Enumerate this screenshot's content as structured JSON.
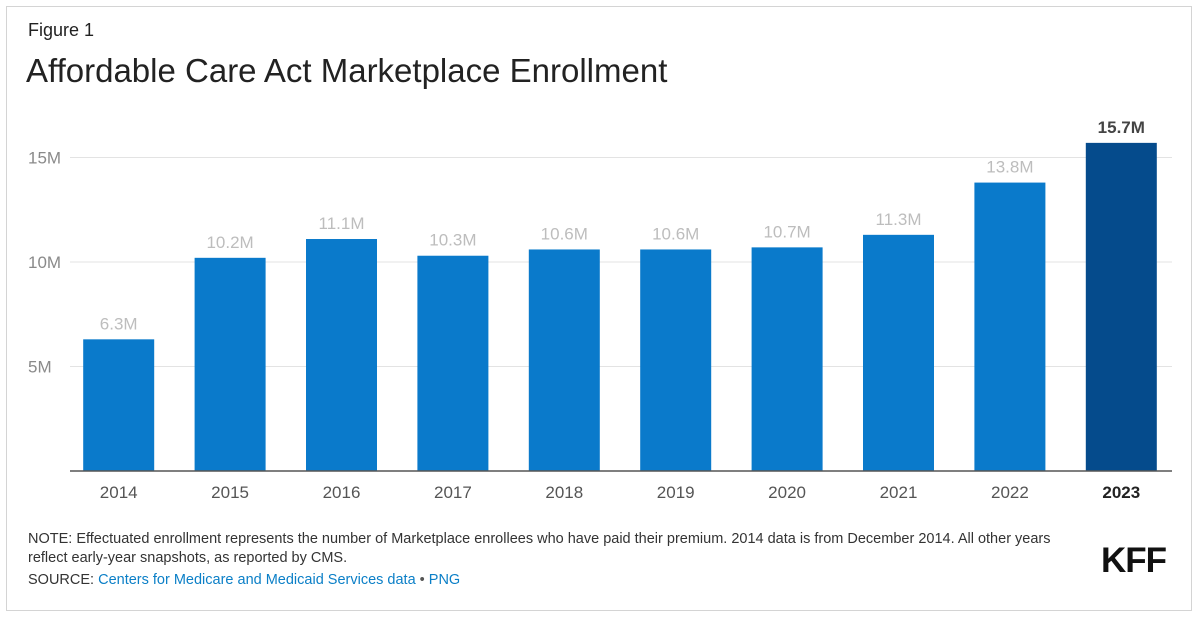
{
  "figure_label": "Figure 1",
  "title": "Affordable Care Act Marketplace Enrollment",
  "note": "NOTE: Effectuated enrollment represents the number of Marketplace enrollees who have paid their premium. 2014 data is from December 2014. All other years reflect early-year snapshots, as reported by CMS.",
  "source": {
    "prefix": "SOURCE: ",
    "link_text": "Centers for Medicare and Medicaid Services data",
    "separator": " • ",
    "png_link": "PNG"
  },
  "logo": "KFF",
  "colors": {
    "bar": "#0a7acb",
    "bar_highlight": "#054b8c",
    "data_label": "#bdbdbd",
    "highlight_label": "#444444",
    "grid": "#e3e3e3",
    "axis": "#555555",
    "tick_label": "#8a8a8a",
    "link": "#0b7fc7"
  },
  "chart_data": {
    "type": "bar",
    "categories": [
      "2014",
      "2015",
      "2016",
      "2017",
      "2018",
      "2019",
      "2020",
      "2021",
      "2022",
      "2023"
    ],
    "values": [
      6.3,
      10.2,
      11.1,
      10.3,
      10.6,
      10.6,
      10.7,
      11.3,
      13.8,
      15.7
    ],
    "data_labels": [
      "6.3M",
      "10.2M",
      "11.1M",
      "10.3M",
      "10.6M",
      "10.6M",
      "10.7M",
      "11.3M",
      "13.8M",
      "15.7M"
    ],
    "highlight": "2023",
    "ylim": [
      0,
      15.7
    ],
    "yticks": [
      5,
      10,
      15
    ],
    "ytick_labels": [
      "5M",
      "10M",
      "15M"
    ],
    "grid": true,
    "unit": "millions"
  }
}
